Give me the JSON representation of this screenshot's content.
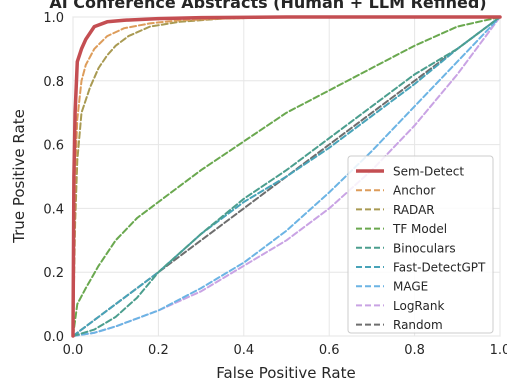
{
  "chart_data": {
    "type": "line",
    "title": "AI Conference Abstracts (Human + LLM Refined)",
    "xlabel": "False Positive Rate",
    "ylabel": "True Positive Rate",
    "xlim": [
      0,
      1
    ],
    "ylim": [
      0,
      1
    ],
    "xticks": [
      "0.0",
      "0.2",
      "0.4",
      "0.6",
      "0.8",
      "1.0"
    ],
    "yticks": [
      "0.0",
      "0.2",
      "0.4",
      "0.6",
      "0.8",
      "1.0"
    ],
    "grid": true,
    "legend_position": "bottom-right",
    "series": [
      {
        "name": "Sem-Detect",
        "color": "#c44e52",
        "style": "solid",
        "x": [
          0,
          0.002,
          0.005,
          0.01,
          0.02,
          0.03,
          0.05,
          0.08,
          0.12,
          0.2,
          0.3,
          0.5,
          1.0
        ],
        "y": [
          0,
          0.5,
          0.7,
          0.86,
          0.9,
          0.93,
          0.97,
          0.985,
          0.99,
          0.995,
          0.998,
          1.0,
          1.0
        ]
      },
      {
        "name": "Anchor",
        "color": "#dd9c5a",
        "style": "dashed",
        "x": [
          0,
          0.005,
          0.01,
          0.02,
          0.03,
          0.05,
          0.08,
          0.12,
          0.18,
          0.25,
          0.35,
          0.5,
          1.0
        ],
        "y": [
          0,
          0.5,
          0.68,
          0.8,
          0.85,
          0.9,
          0.94,
          0.965,
          0.98,
          0.99,
          0.995,
          1.0,
          1.0
        ]
      },
      {
        "name": "RADAR",
        "color": "#a99a52",
        "style": "dashed",
        "x": [
          0,
          0.005,
          0.01,
          0.02,
          0.04,
          0.06,
          0.08,
          0.1,
          0.13,
          0.18,
          0.25,
          0.35,
          0.5,
          1.0
        ],
        "y": [
          0,
          0.35,
          0.55,
          0.7,
          0.78,
          0.84,
          0.88,
          0.91,
          0.94,
          0.97,
          0.985,
          0.995,
          1.0,
          1.0
        ]
      },
      {
        "name": "TF Model",
        "color": "#6aa84f",
        "style": "dashed",
        "x": [
          0,
          0.01,
          0.03,
          0.06,
          0.1,
          0.15,
          0.2,
          0.3,
          0.4,
          0.5,
          0.6,
          0.7,
          0.8,
          0.9,
          1.0
        ],
        "y": [
          0,
          0.1,
          0.15,
          0.22,
          0.3,
          0.37,
          0.42,
          0.52,
          0.61,
          0.7,
          0.77,
          0.84,
          0.91,
          0.97,
          1.0
        ]
      },
      {
        "name": "Binoculars",
        "color": "#4b9e8e",
        "style": "dashed",
        "x": [
          0,
          0.05,
          0.1,
          0.15,
          0.2,
          0.3,
          0.4,
          0.5,
          0.6,
          0.7,
          0.8,
          0.9,
          1.0
        ],
        "y": [
          0,
          0.02,
          0.06,
          0.12,
          0.2,
          0.32,
          0.43,
          0.52,
          0.62,
          0.72,
          0.82,
          0.9,
          1.0
        ]
      },
      {
        "name": "Fast-DetectGPT",
        "color": "#48a3b8",
        "style": "dashed",
        "x": [
          0,
          0.05,
          0.1,
          0.2,
          0.3,
          0.4,
          0.5,
          0.6,
          0.7,
          0.8,
          0.9,
          1.0
        ],
        "y": [
          0,
          0.05,
          0.1,
          0.2,
          0.32,
          0.42,
          0.5,
          0.59,
          0.69,
          0.79,
          0.9,
          1.0
        ]
      },
      {
        "name": "MAGE",
        "color": "#6cb4e4",
        "style": "dashed",
        "x": [
          0,
          0.05,
          0.1,
          0.2,
          0.3,
          0.4,
          0.5,
          0.6,
          0.7,
          0.8,
          0.9,
          1.0
        ],
        "y": [
          0,
          0.01,
          0.03,
          0.08,
          0.15,
          0.23,
          0.33,
          0.45,
          0.58,
          0.72,
          0.86,
          1.0
        ]
      },
      {
        "name": "LogRank",
        "color": "#c9a3e4",
        "style": "dashed",
        "x": [
          0,
          0.05,
          0.1,
          0.2,
          0.3,
          0.4,
          0.5,
          0.6,
          0.7,
          0.8,
          0.9,
          1.0
        ],
        "y": [
          0,
          0.01,
          0.03,
          0.08,
          0.14,
          0.22,
          0.3,
          0.4,
          0.52,
          0.66,
          0.82,
          1.0
        ]
      },
      {
        "name": "Random",
        "color": "#6e6e6e",
        "style": "dashed",
        "x": [
          0,
          1
        ],
        "y": [
          0,
          1
        ]
      }
    ]
  }
}
